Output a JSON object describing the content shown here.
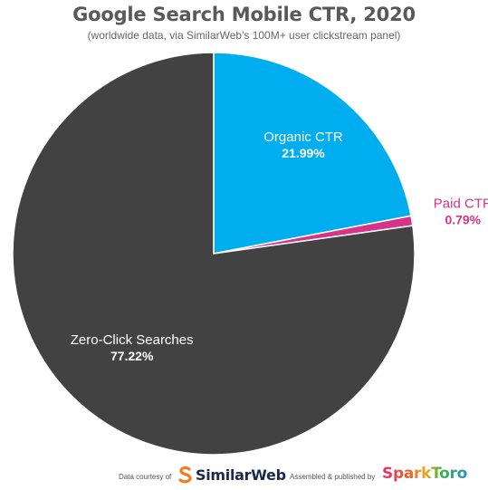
{
  "chart_data": {
    "type": "pie",
    "title": "Google Search Mobile CTR, 2020",
    "subtitle": "(worldwide data, via SimilarWeb's 100M+ user clickstream panel)",
    "slices": [
      {
        "label": "Organic CTR",
        "value": 21.99,
        "value_label": "21.99%",
        "color": "#00aeef"
      },
      {
        "label": "Paid CTR",
        "value": 0.79,
        "value_label": "0.79%",
        "color": "#d6338a"
      },
      {
        "label": "Zero-Click Searches",
        "value": 77.22,
        "value_label": "77.22%",
        "color": "#424242"
      }
    ],
    "start_angle": "12 o'clock",
    "direction": "clockwise"
  },
  "footer": {
    "data_courtesy": "Data courtesy of",
    "similarweb": "SimilarWeb",
    "assembled": "Assembled & published by",
    "sparktoro": "SparkToro"
  }
}
